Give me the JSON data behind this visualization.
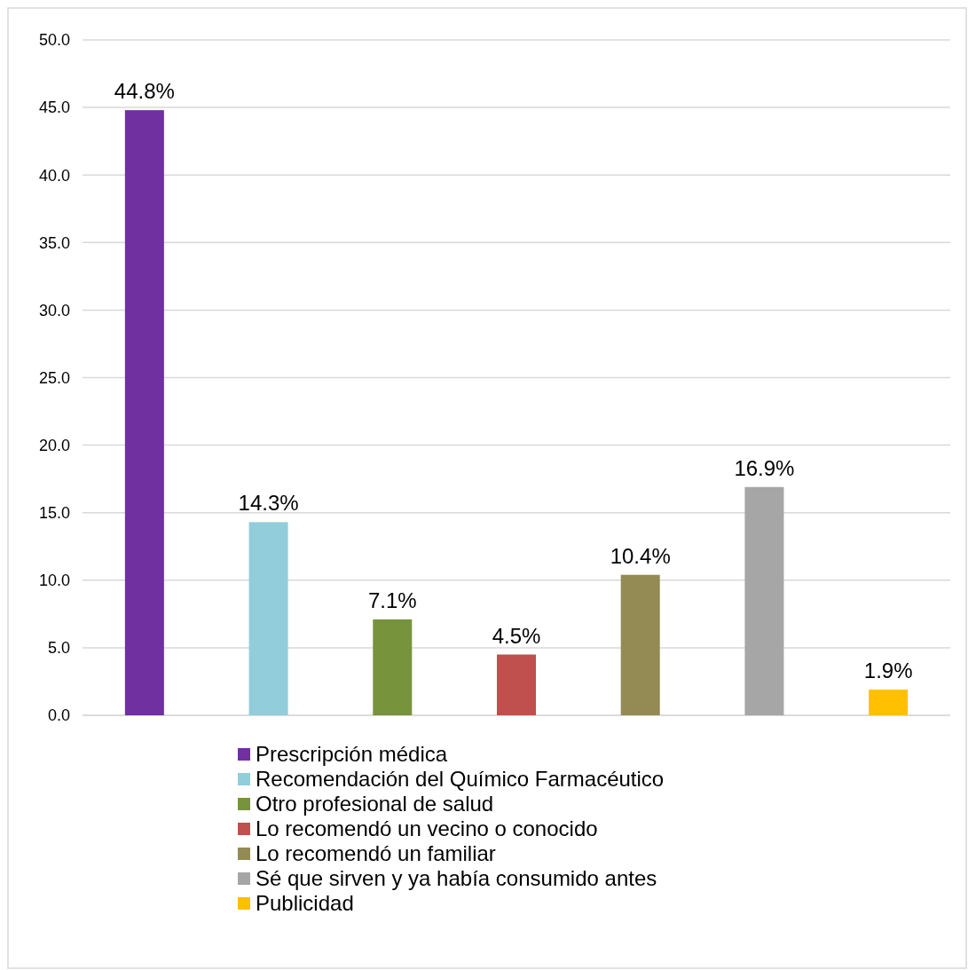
{
  "chart_data": {
    "type": "bar",
    "categories": [
      null
    ],
    "series": [
      {
        "name": "Prescripción médica",
        "color": "#7030a0",
        "values": [
          44.8
        ],
        "value_labels": [
          "44.8%"
        ]
      },
      {
        "name": "Recomendación del Químico Farmacéutico",
        "color": "#92cddc",
        "values": [
          14.3
        ],
        "value_labels": [
          "14.3%"
        ]
      },
      {
        "name": "Otro profesional de salud",
        "color": "#77933c",
        "values": [
          7.1
        ],
        "value_labels": [
          "7.1%"
        ]
      },
      {
        "name": "Lo recomendó un vecino o conocido",
        "color": "#c0504d",
        "values": [
          4.5
        ],
        "value_labels": [
          "4.5%"
        ]
      },
      {
        "name": "Lo recomendó un familiar",
        "color": "#948a54",
        "values": [
          10.4
        ],
        "value_labels": [
          "10.4%"
        ]
      },
      {
        "name": "Sé que sirven y ya había consumido antes",
        "color": "#a6a6a6",
        "values": [
          16.9
        ],
        "value_labels": [
          "16.9%"
        ]
      },
      {
        "name": "Publicidad",
        "color": "#ffc000",
        "values": [
          1.9
        ],
        "value_labels": [
          "1.9%"
        ]
      }
    ],
    "ylim": [
      0,
      50
    ],
    "yticks": [
      {
        "value": 0,
        "label": "0.0"
      },
      {
        "value": 5,
        "label": "5.0"
      },
      {
        "value": 10,
        "label": "10.0"
      },
      {
        "value": 15,
        "label": "15.0"
      },
      {
        "value": 20,
        "label": "20.0"
      },
      {
        "value": 25,
        "label": "25.0"
      },
      {
        "value": 30,
        "label": "30.0"
      },
      {
        "value": 35,
        "label": "35.0"
      },
      {
        "value": 40,
        "label": "40.0"
      },
      {
        "value": 45,
        "label": "45.0"
      },
      {
        "value": 50,
        "label": "50.0"
      }
    ],
    "grid": "y",
    "legend": "bottom"
  }
}
